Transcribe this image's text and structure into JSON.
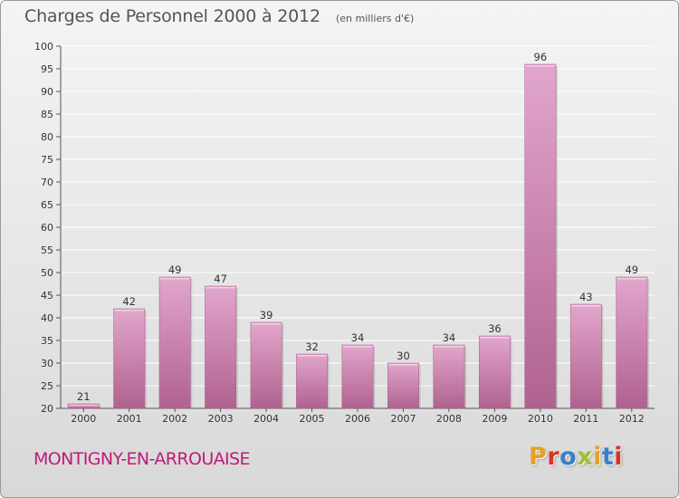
{
  "header": {
    "title": "Charges de Personnel 2000 à 2012",
    "unit_note": "(en milliers d'€)"
  },
  "footer": {
    "location": "MONTIGNY-EN-ARROUAISE",
    "brand": "Proxiti",
    "brand_colors": [
      "#e8a020",
      "#d9332a",
      "#3b7fc4",
      "#9cc13a",
      "#e8a020",
      "#3b7fc4",
      "#d9332a"
    ]
  },
  "chart_data": {
    "type": "bar",
    "categories": [
      "2000",
      "2001",
      "2002",
      "2003",
      "2004",
      "2005",
      "2006",
      "2007",
      "2008",
      "2009",
      "2010",
      "2011",
      "2012"
    ],
    "values": [
      21,
      42,
      49,
      47,
      39,
      32,
      34,
      30,
      34,
      36,
      96,
      43,
      49
    ],
    "value_labels": [
      "21",
      "42",
      "49",
      "47",
      "39",
      "32",
      "34",
      "30",
      "34",
      "36",
      "96",
      "43",
      "49"
    ],
    "title": "Charges de Personnel 2000 à 2012",
    "subtitle": "(en milliers d'€)",
    "ylim": [
      20,
      100
    ],
    "yticks": [
      20,
      25,
      30,
      35,
      40,
      45,
      50,
      55,
      60,
      65,
      70,
      75,
      80,
      85,
      90,
      95,
      100
    ],
    "grid": true,
    "bar_color": "#d898c0",
    "bar_color_dark": "#b0628e",
    "grid_color": "#ffffff"
  }
}
